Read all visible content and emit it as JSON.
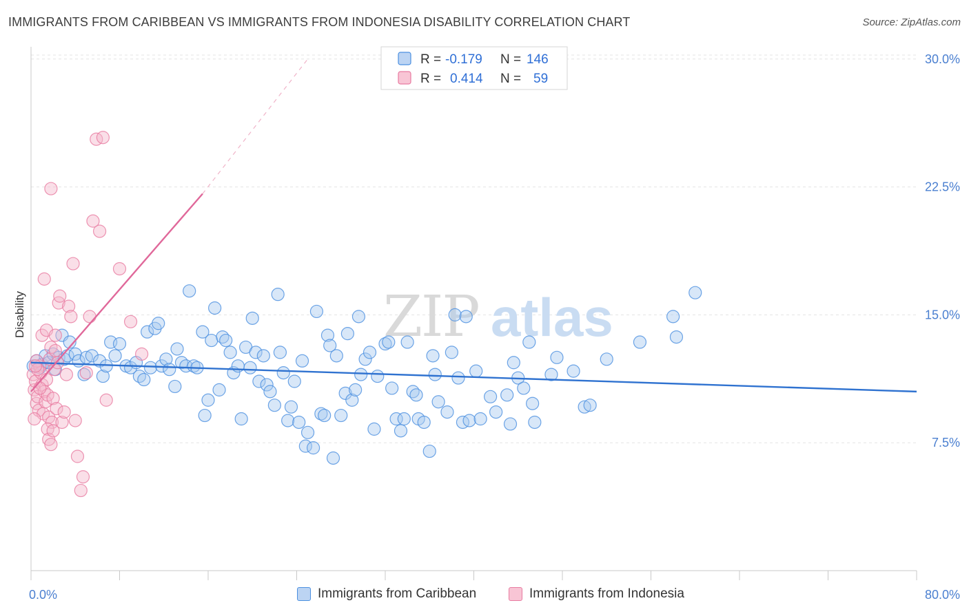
{
  "title": "IMMIGRANTS FROM CARIBBEAN VS IMMIGRANTS FROM INDONESIA DISABILITY CORRELATION CHART",
  "source": "Source: ZipAtlas.com",
  "watermark": {
    "zip": "ZIP",
    "atlas": "atlas"
  },
  "colors": {
    "blue": "#4a8fe0",
    "blue_fill": "#a9c9f0",
    "blue_line": "#2f72d0",
    "pink": "#e87aa0",
    "pink_fill": "#f5b8cc",
    "pink_line": "#e0689a"
  },
  "legend": {
    "rows": [
      {
        "r_label": "R =",
        "r_value": "-0.179",
        "n_label": "N =",
        "n_value": "146"
      },
      {
        "r_label": "R =",
        "r_value": "0.414",
        "n_label": "N =",
        "n_value": "59"
      }
    ]
  },
  "bottom_legend": [
    "Immigrants from Caribbean",
    "Immigrants from Indonesia"
  ],
  "chart_data": {
    "type": "scatter",
    "ylabel": "Disability",
    "xlim": [
      0,
      80
    ],
    "ylim": [
      0,
      31
    ],
    "x_tick_labels": [
      "0.0%",
      "80.0%"
    ],
    "y_ticks": [
      7.5,
      15.0,
      22.5,
      30.0
    ],
    "y_tick_labels": [
      "7.5%",
      "15.0%",
      "22.5%",
      "30.0%"
    ],
    "grid": "horizontal dashed",
    "legend_placement": "top-center",
    "series": [
      {
        "name": "Immigrants from Caribbean",
        "color": "blue",
        "trend": {
          "x": [
            0,
            80
          ],
          "y": [
            12.2,
            10.5
          ]
        },
        "points": [
          [
            0.2,
            12.0
          ],
          [
            0.5,
            12.3
          ],
          [
            0.8,
            11.9
          ],
          [
            1.0,
            12.1
          ],
          [
            1.3,
            12.6
          ],
          [
            1.6,
            12.2
          ],
          [
            2.0,
            12.7
          ],
          [
            2.2,
            11.8
          ],
          [
            2.5,
            12.5
          ],
          [
            2.8,
            13.8
          ],
          [
            3.0,
            12.4
          ],
          [
            3.3,
            12.6
          ],
          [
            3.5,
            13.4
          ],
          [
            4.0,
            12.7
          ],
          [
            4.3,
            12.3
          ],
          [
            4.8,
            11.5
          ],
          [
            5.0,
            12.5
          ],
          [
            5.5,
            12.6
          ],
          [
            6.2,
            12.3
          ],
          [
            6.5,
            11.4
          ],
          [
            6.8,
            12.0
          ],
          [
            7.2,
            13.4
          ],
          [
            7.6,
            12.6
          ],
          [
            8.0,
            13.3
          ],
          [
            8.6,
            12.0
          ],
          [
            9.0,
            11.9
          ],
          [
            9.5,
            12.2
          ],
          [
            9.8,
            11.4
          ],
          [
            10.2,
            11.2
          ],
          [
            10.5,
            14.0
          ],
          [
            10.8,
            11.9
          ],
          [
            11.2,
            14.2
          ],
          [
            11.5,
            14.5
          ],
          [
            11.8,
            12.0
          ],
          [
            12.2,
            12.4
          ],
          [
            12.5,
            11.8
          ],
          [
            13.0,
            10.8
          ],
          [
            13.2,
            13.0
          ],
          [
            13.6,
            12.2
          ],
          [
            14.0,
            12.0
          ],
          [
            14.3,
            16.4
          ],
          [
            14.7,
            12.0
          ],
          [
            15.0,
            11.9
          ],
          [
            15.5,
            14.0
          ],
          [
            15.7,
            9.1
          ],
          [
            16.0,
            10.0
          ],
          [
            16.3,
            13.5
          ],
          [
            16.6,
            15.4
          ],
          [
            17.0,
            10.6
          ],
          [
            17.3,
            13.7
          ],
          [
            17.6,
            13.5
          ],
          [
            18.0,
            12.8
          ],
          [
            18.3,
            11.6
          ],
          [
            18.7,
            12.0
          ],
          [
            19.0,
            8.9
          ],
          [
            19.4,
            13.1
          ],
          [
            19.8,
            11.9
          ],
          [
            20.0,
            14.8
          ],
          [
            20.3,
            12.8
          ],
          [
            20.6,
            11.1
          ],
          [
            21.0,
            12.6
          ],
          [
            21.3,
            10.9
          ],
          [
            21.6,
            10.5
          ],
          [
            22.0,
            9.7
          ],
          [
            22.3,
            16.2
          ],
          [
            22.5,
            12.8
          ],
          [
            22.8,
            11.6
          ],
          [
            23.2,
            8.8
          ],
          [
            23.5,
            9.6
          ],
          [
            23.8,
            11.1
          ],
          [
            24.2,
            8.7
          ],
          [
            24.5,
            12.3
          ],
          [
            24.8,
            7.3
          ],
          [
            25.0,
            8.1
          ],
          [
            25.5,
            7.2
          ],
          [
            25.8,
            15.2
          ],
          [
            26.2,
            9.2
          ],
          [
            26.5,
            9.1
          ],
          [
            26.8,
            13.8
          ],
          [
            27.0,
            13.2
          ],
          [
            27.3,
            6.6
          ],
          [
            27.6,
            12.6
          ],
          [
            28.0,
            9.1
          ],
          [
            28.4,
            10.4
          ],
          [
            28.6,
            13.9
          ],
          [
            29.0,
            10.0
          ],
          [
            29.3,
            10.6
          ],
          [
            29.6,
            14.9
          ],
          [
            29.8,
            11.5
          ],
          [
            30.2,
            12.4
          ],
          [
            30.6,
            12.8
          ],
          [
            31.0,
            8.3
          ],
          [
            31.3,
            11.4
          ],
          [
            32.0,
            13.3
          ],
          [
            32.3,
            13.4
          ],
          [
            32.6,
            10.7
          ],
          [
            33.0,
            8.9
          ],
          [
            33.4,
            8.2
          ],
          [
            33.7,
            8.9
          ],
          [
            34.0,
            13.4
          ],
          [
            34.5,
            10.5
          ],
          [
            34.8,
            10.3
          ],
          [
            35.0,
            8.9
          ],
          [
            35.5,
            8.7
          ],
          [
            36.0,
            7.0
          ],
          [
            36.3,
            12.6
          ],
          [
            36.5,
            11.5
          ],
          [
            36.8,
            9.9
          ],
          [
            37.6,
            9.3
          ],
          [
            38.0,
            12.8
          ],
          [
            38.3,
            15.0
          ],
          [
            38.6,
            11.3
          ],
          [
            39.0,
            8.7
          ],
          [
            39.3,
            14.9
          ],
          [
            39.6,
            8.8
          ],
          [
            40.2,
            11.7
          ],
          [
            40.6,
            8.9
          ],
          [
            41.5,
            10.2
          ],
          [
            42.0,
            9.3
          ],
          [
            43.0,
            10.3
          ],
          [
            43.3,
            8.6
          ],
          [
            43.6,
            12.2
          ],
          [
            44.0,
            11.3
          ],
          [
            44.5,
            10.7
          ],
          [
            45.0,
            13.4
          ],
          [
            45.3,
            9.8
          ],
          [
            45.5,
            8.7
          ],
          [
            47.0,
            11.5
          ],
          [
            47.5,
            12.5
          ],
          [
            49.0,
            11.7
          ],
          [
            50.0,
            9.6
          ],
          [
            50.5,
            9.7
          ],
          [
            52.0,
            12.4
          ],
          [
            55.0,
            13.4
          ],
          [
            58.0,
            14.9
          ],
          [
            58.3,
            13.7
          ],
          [
            60.0,
            16.3
          ]
        ]
      },
      {
        "name": "Immigrants from Indonesia",
        "color": "pink",
        "trend": {
          "x": [
            0,
            15.5
          ],
          "y": [
            10.5,
            22.1
          ]
        },
        "trend_ext": {
          "x": [
            15.5,
            25.0
          ],
          "y": [
            22.1,
            30.0
          ]
        },
        "points": [
          [
            0.2,
            11.5
          ],
          [
            0.3,
            10.6
          ],
          [
            0.4,
            11.1
          ],
          [
            0.5,
            9.8
          ],
          [
            0.6,
            10.2
          ],
          [
            0.7,
            9.4
          ],
          [
            0.8,
            12.0
          ],
          [
            0.9,
            11.6
          ],
          [
            1.0,
            10.9
          ],
          [
            1.1,
            9.2
          ],
          [
            1.2,
            10.5
          ],
          [
            1.3,
            9.9
          ],
          [
            1.4,
            11.2
          ],
          [
            1.5,
            10.3
          ],
          [
            1.6,
            9.0
          ],
          [
            1.7,
            12.4
          ],
          [
            1.8,
            13.1
          ],
          [
            1.9,
            8.7
          ],
          [
            2.0,
            10.1
          ],
          [
            2.1,
            11.8
          ],
          [
            2.2,
            12.9
          ],
          [
            2.3,
            9.5
          ],
          [
            0.5,
            12.3
          ],
          [
            0.6,
            11.8
          ],
          [
            0.8,
            10.7
          ],
          [
            1.0,
            13.8
          ],
          [
            1.2,
            17.1
          ],
          [
            1.4,
            14.1
          ],
          [
            1.5,
            8.3
          ],
          [
            1.6,
            7.7
          ],
          [
            1.8,
            7.4
          ],
          [
            2.0,
            8.2
          ],
          [
            2.2,
            13.8
          ],
          [
            2.4,
            12.2
          ],
          [
            2.5,
            15.7
          ],
          [
            2.6,
            16.1
          ],
          [
            2.8,
            8.7
          ],
          [
            3.0,
            9.3
          ],
          [
            3.2,
            11.5
          ],
          [
            3.4,
            15.5
          ],
          [
            3.6,
            14.9
          ],
          [
            3.8,
            18.0
          ],
          [
            4.0,
            8.8
          ],
          [
            4.2,
            6.7
          ],
          [
            4.5,
            4.7
          ],
          [
            4.7,
            5.5
          ],
          [
            5.0,
            11.6
          ],
          [
            5.3,
            14.9
          ],
          [
            5.6,
            20.5
          ],
          [
            5.9,
            25.3
          ],
          [
            6.2,
            19.9
          ],
          [
            6.5,
            25.4
          ],
          [
            6.8,
            10.0
          ],
          [
            8.0,
            17.7
          ],
          [
            9.0,
            14.6
          ],
          [
            10.0,
            12.7
          ],
          [
            1.8,
            22.4
          ],
          [
            0.3,
            8.9
          ],
          [
            0.4,
            12.0
          ]
        ]
      }
    ]
  }
}
